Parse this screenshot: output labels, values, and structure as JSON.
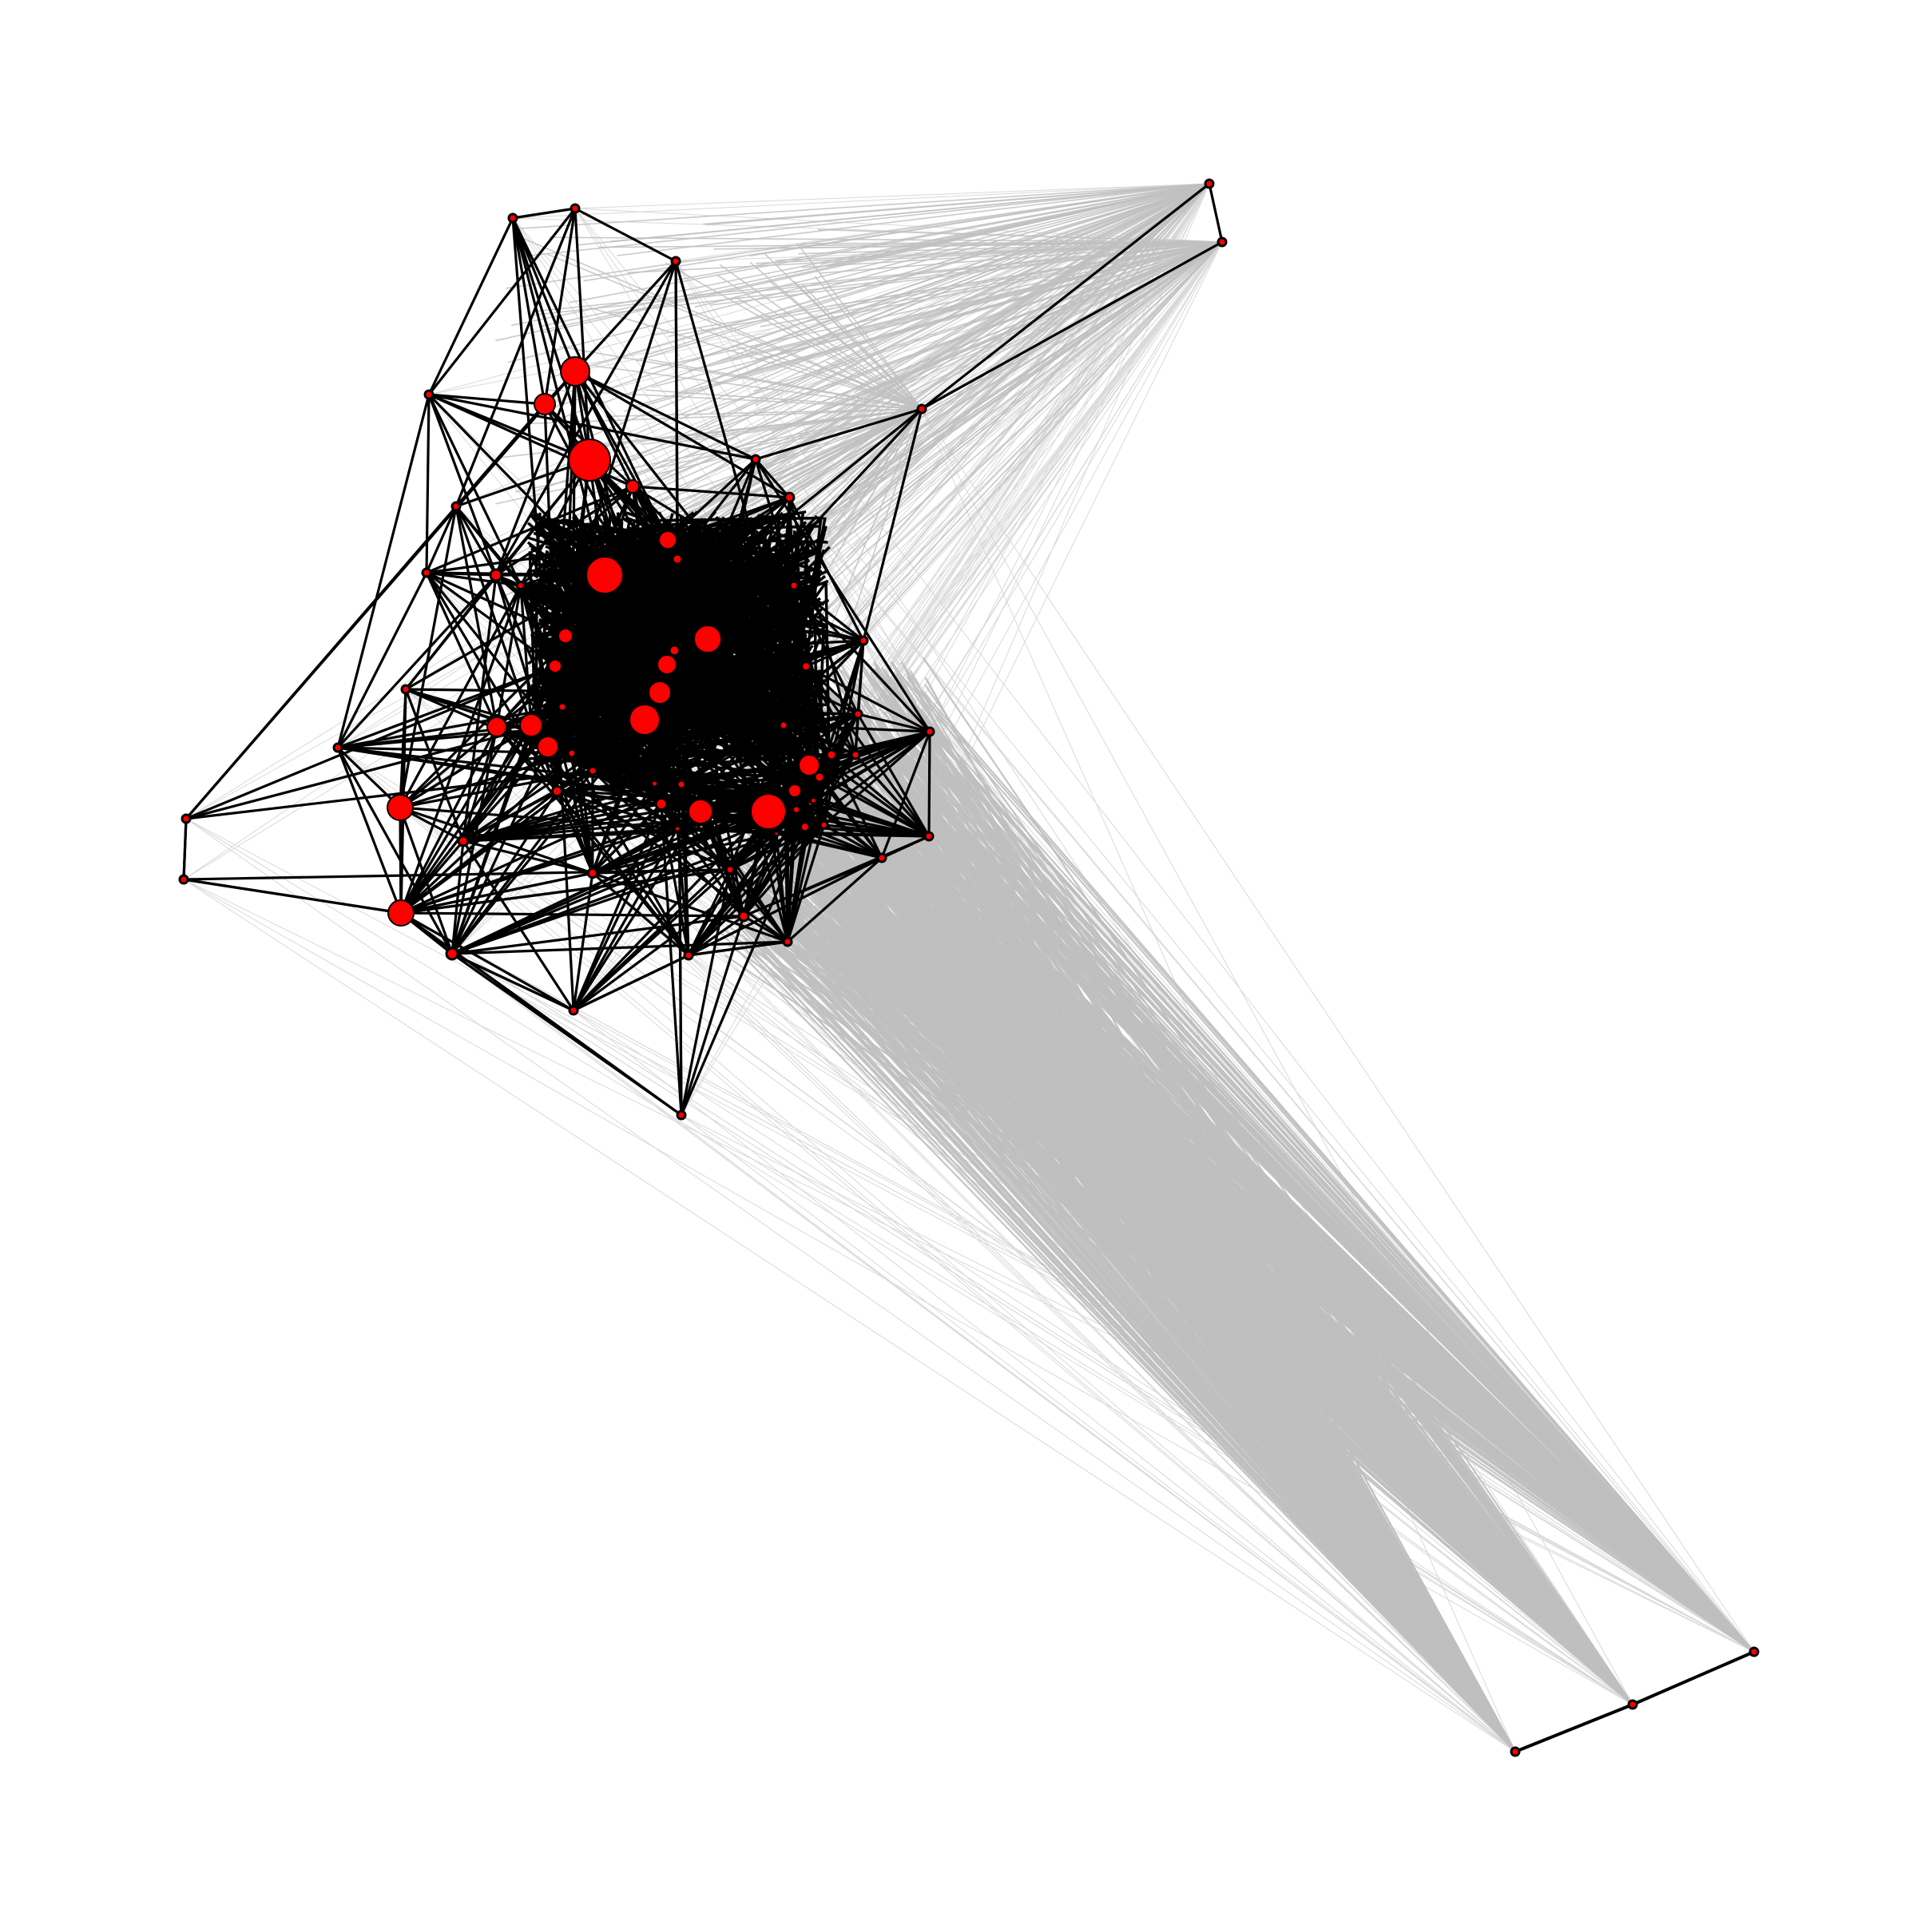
{
  "graph": {
    "description_visible_text": "",
    "colors": {
      "background": "#ffffff",
      "node_fill": "#ff0000",
      "node_stroke": "#000000",
      "strong_edge": "#000000",
      "weak_edge": "#bfbfbf",
      "faint_edge": "#d9d9d9"
    },
    "node_count_visible": 80,
    "legend": "none",
    "labels": "none"
  }
}
